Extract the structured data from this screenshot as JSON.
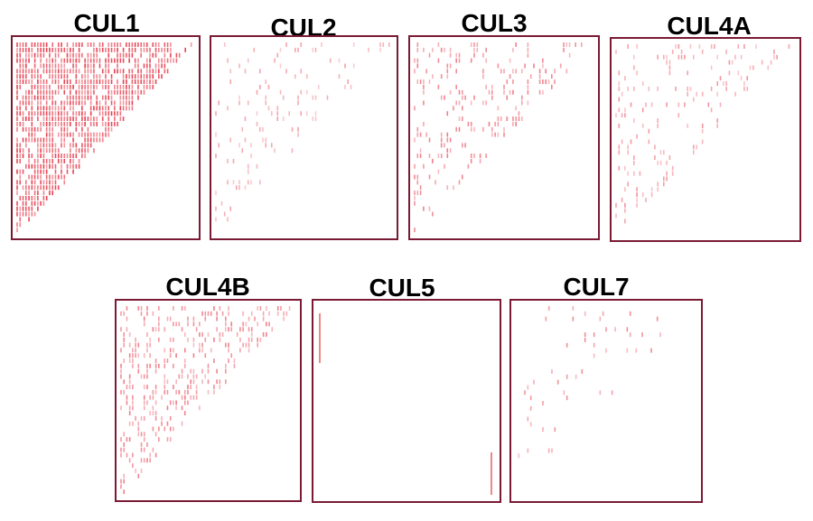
{
  "panels": [
    {
      "title": "CUL1"
    },
    {
      "title": "CUL2"
    },
    {
      "title": "CUL3"
    },
    {
      "title": "CUL4A"
    },
    {
      "title": "CUL4B"
    },
    {
      "title": "CUL5"
    },
    {
      "title": "CUL7"
    }
  ]
}
